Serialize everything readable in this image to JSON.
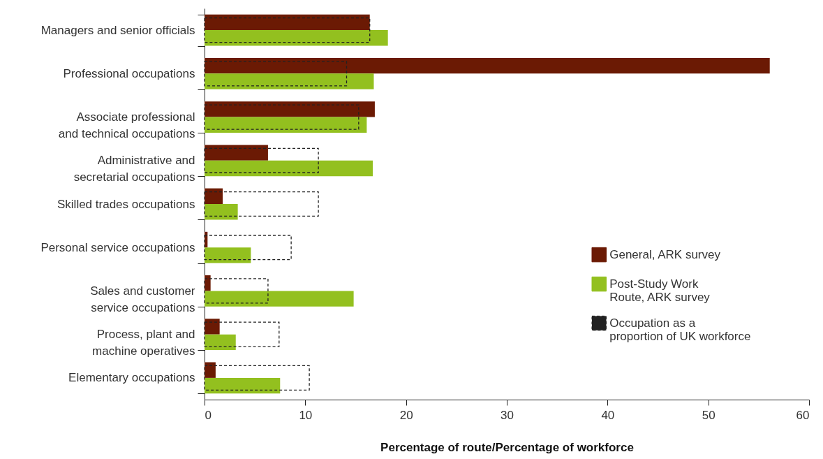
{
  "chart_data": {
    "type": "bar",
    "orientation": "horizontal",
    "xlabel": "Percentage of route/Percentage of workforce",
    "categories": [
      "Managers and senior officials",
      "Professional occupations",
      "Associate professional and technical occupations",
      "Administrative and secretarial occupations",
      "Skilled trades occupations",
      "Personal service occupations",
      "Sales and customer service occupations",
      "Process, plant and machine operatives",
      "Elementary occupations"
    ],
    "series": [
      {
        "name": "General, ARK survey",
        "color": "#6b1a04",
        "values": [
          16.4,
          56.1,
          16.9,
          6.3,
          1.8,
          0.3,
          0.6,
          1.5,
          1.1
        ]
      },
      {
        "name": "Post-Study Work Route, ARK survey",
        "color": "#93c01f",
        "values": [
          18.2,
          16.8,
          16.1,
          16.7,
          3.3,
          4.6,
          14.8,
          3.1,
          7.5
        ]
      },
      {
        "name": "Occupation as a proportion of UK workforce",
        "color": "#222222",
        "line_style": "dashed",
        "values": [
          16.4,
          14.1,
          15.3,
          11.3,
          11.3,
          8.6,
          6.3,
          7.4,
          10.4
        ]
      }
    ],
    "xlim": [
      0,
      60
    ],
    "xticks": [
      0,
      10,
      20,
      30,
      40,
      50,
      60
    ],
    "grid": false,
    "legend": "right"
  }
}
